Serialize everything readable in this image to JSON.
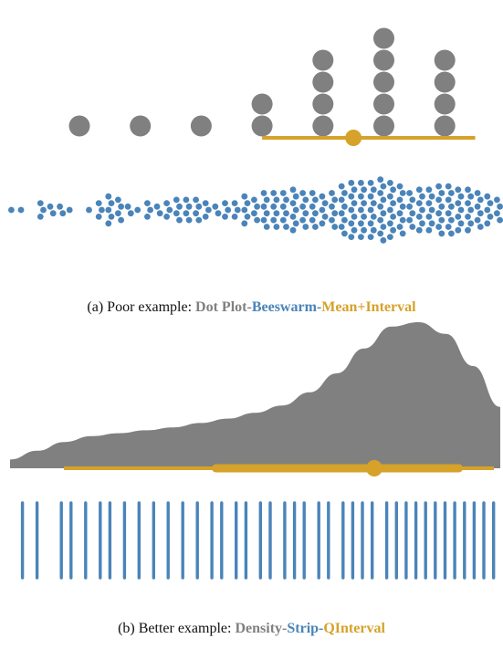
{
  "colors": {
    "gray": "#808080",
    "blue": "#4a84b9",
    "gold": "#d6a22a"
  },
  "captions": {
    "a": {
      "prefix": "(a) Poor example: ",
      "t1": "Dot Plot",
      "sep1": "-",
      "t2": "Beeswarm",
      "sep2": "-",
      "t3": "Mean+Interval"
    },
    "b": {
      "prefix": "(b) Better example: ",
      "t1": "Density",
      "sep1": "-",
      "t2": "Strip",
      "sep2": "-",
      "t3": "QInterval"
    }
  },
  "chart_data": [
    {
      "type": "scatter",
      "panel": "a",
      "layer": "dot plot (binned)",
      "x": [
        1,
        2,
        3,
        4,
        5,
        6,
        7
      ],
      "values": [
        1,
        1,
        1,
        2,
        4,
        5,
        4
      ],
      "ylim": [
        0,
        5
      ]
    },
    {
      "type": "scatter",
      "panel": "a",
      "layer": "mean + interval",
      "mean": 5.5,
      "interval": [
        4,
        7.5
      ]
    },
    {
      "type": "scatter",
      "panel": "a",
      "layer": "beeswarm",
      "column_counts": [
        1,
        1,
        0,
        3,
        2,
        2,
        1,
        0,
        1,
        3,
        5,
        4,
        2,
        1,
        3,
        2,
        3,
        4,
        4,
        4,
        3,
        2,
        3,
        3,
        5,
        4,
        6,
        6,
        6,
        7,
        6,
        6,
        5,
        6,
        8,
        9,
        9,
        9,
        10,
        9,
        8,
        6,
        7,
        7,
        8,
        8,
        7,
        7,
        6,
        5,
        4
      ]
    },
    {
      "type": "area",
      "panel": "b",
      "layer": "density",
      "values": [
        0.06,
        0.12,
        0.18,
        0.22,
        0.24,
        0.26,
        0.28,
        0.31,
        0.34,
        0.38,
        0.43,
        0.52,
        0.65,
        0.82,
        0.97,
        1.0,
        0.92,
        0.7,
        0.42
      ],
      "ylim": [
        0,
        1
      ]
    },
    {
      "type": "scatter",
      "panel": "b",
      "layer": "quantile interval",
      "median": 0.82,
      "inner_interval": [
        0.42,
        0.99
      ],
      "outer_interval": [
        0.11,
        1.0
      ]
    },
    {
      "type": "scatter",
      "panel": "b",
      "layer": "strip",
      "positions": [
        0.02,
        0.05,
        0.1,
        0.12,
        0.15,
        0.18,
        0.2,
        0.23,
        0.26,
        0.29,
        0.32,
        0.35,
        0.38,
        0.41,
        0.43,
        0.46,
        0.48,
        0.51,
        0.53,
        0.56,
        0.58,
        0.6,
        0.63,
        0.65,
        0.68,
        0.7,
        0.72,
        0.74,
        0.77,
        0.79,
        0.81,
        0.83,
        0.85,
        0.87,
        0.89,
        0.91,
        0.93,
        0.95,
        0.97,
        0.99
      ]
    }
  ]
}
